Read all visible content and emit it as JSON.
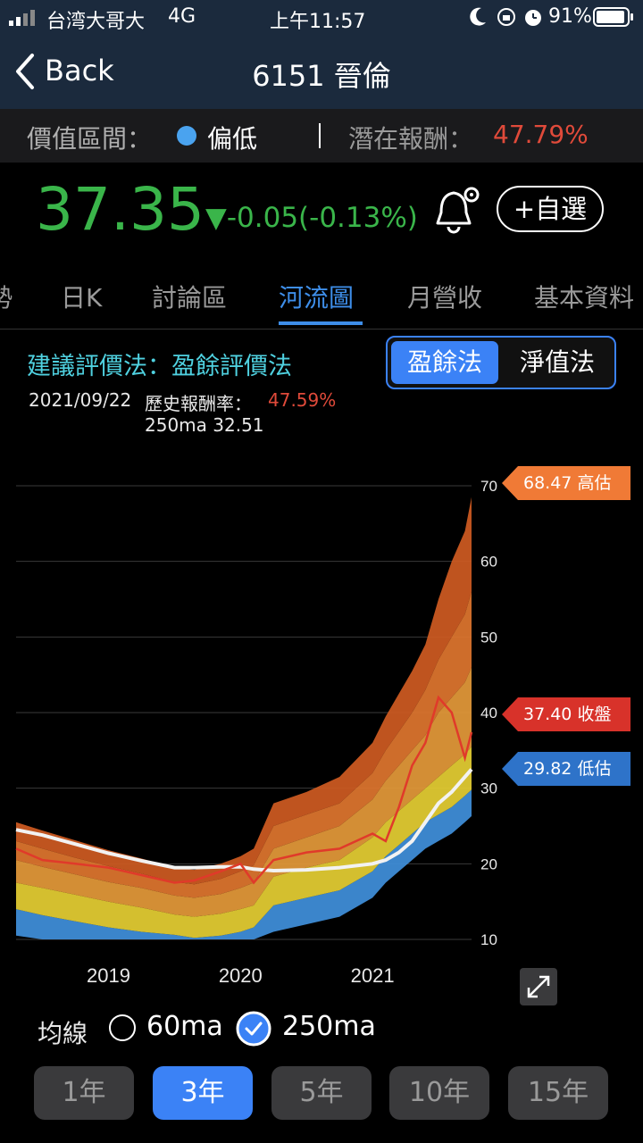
{
  "status": {
    "carrier": "台湾大哥大",
    "network": "4G",
    "time": "上午11:57",
    "battery": "91%"
  },
  "nav": {
    "back_label": "Back",
    "title": "6151 晉倫"
  },
  "info": {
    "valuation_label": "價值區間：",
    "valuation_value": "偏低",
    "valuation_dot_color": "#4aa3ef",
    "potential_label": "潛在報酬：",
    "potential_value": "47.79%"
  },
  "price": {
    "value": "37.35",
    "change": "▼-0.05(-0.13%)",
    "watch_label": "+自選"
  },
  "tabs": [
    "勢",
    "日K",
    "討論區",
    "河流圖",
    "月營收",
    "基本資料"
  ],
  "active_tab": "河流圖",
  "chart_header": {
    "method": "建議評價法：盈餘評價法",
    "date": "2021/09/22",
    "hist_label": "歷史報酬率：",
    "hist_value": "47.59%",
    "ma_text": "250ma 32.51"
  },
  "method_toggle": {
    "options": [
      "盈餘法",
      "淨值法"
    ],
    "selected": "盈餘法"
  },
  "price_tags": [
    {
      "value": "68.47",
      "label": "高估",
      "color": "#f07a36"
    },
    {
      "value": "37.40",
      "label": "收盤",
      "color": "#d8322a"
    },
    {
      "value": "29.82",
      "label": "低估",
      "color": "#2e73c9"
    }
  ],
  "ma_controls": {
    "label": "均線",
    "options": [
      {
        "name": "60ma",
        "checked": false
      },
      {
        "name": "250ma",
        "checked": true
      }
    ]
  },
  "periods": [
    "1年",
    "3年",
    "5年",
    "10年",
    "15年"
  ],
  "active_period": "3年",
  "chart_data": {
    "type": "area",
    "x_ticks": [
      "2019",
      "2020",
      "2021"
    ],
    "y_ticks": [
      10,
      20,
      30,
      40,
      50,
      60,
      70
    ],
    "ylim": [
      10,
      70
    ],
    "time_points": [
      2018.3,
      2018.5,
      2018.75,
      2019.0,
      2019.25,
      2019.5,
      2019.65,
      2019.85,
      2020.0,
      2020.1,
      2020.25,
      2020.5,
      2020.75,
      2021.0,
      2021.1,
      2021.2,
      2021.3,
      2021.4,
      2021.5,
      2021.6,
      2021.7,
      2021.75
    ],
    "bands": [
      [
        14,
        13.2,
        12.4,
        11.6,
        11,
        10.6,
        10.2,
        10.5,
        11,
        11.6,
        14.5,
        15.5,
        16.5,
        19,
        21,
        22.5,
        24,
        25.5,
        26.5,
        27.5,
        29,
        29.8
      ],
      [
        17.5,
        16.8,
        15.9,
        15,
        14.2,
        13.3,
        13,
        13.4,
        14,
        14.5,
        18.3,
        19.5,
        20.5,
        23.5,
        25.5,
        27,
        28.5,
        30,
        31.5,
        33,
        34.5,
        35.5
      ],
      [
        20.5,
        19.6,
        18.6,
        17.6,
        16.8,
        15.8,
        15.5,
        16,
        16.8,
        17.5,
        22,
        23.5,
        25,
        28.5,
        31,
        33,
        35,
        37,
        40,
        42,
        44,
        46
      ],
      [
        23,
        22,
        20.8,
        19.7,
        18.7,
        17.6,
        17.3,
        18,
        19,
        19.8,
        25,
        26.5,
        28,
        32,
        35,
        37.5,
        40,
        43,
        47,
        50,
        53,
        56
      ],
      [
        25.5,
        24.4,
        23.1,
        21.8,
        20.7,
        19.5,
        19.2,
        20,
        21,
        22,
        28,
        29.5,
        31.5,
        36,
        39.5,
        42.5,
        45.5,
        49,
        55,
        60,
        64,
        68.5
      ]
    ],
    "close": [
      22,
      20.5,
      20,
      19.5,
      18.5,
      17.5,
      17.8,
      19,
      20,
      17.5,
      20.5,
      21.5,
      22,
      24,
      23,
      27.5,
      33,
      36,
      42,
      40,
      34,
      37.4
    ],
    "ma250": [
      24.5,
      23.8,
      22.6,
      21.4,
      20.4,
      19.5,
      19.5,
      19.6,
      19.6,
      19.3,
      19.1,
      19.2,
      19.5,
      20,
      20.5,
      21.5,
      23,
      25.5,
      28,
      29.5,
      31.5,
      32.5
    ],
    "band_colors": [
      "#3e8cd6",
      "#e6cf33",
      "#e59a3a",
      "#e0762f",
      "#cf5b22"
    ],
    "close_color": "#e03a2a",
    "ma_color": "#f2f2f2"
  }
}
